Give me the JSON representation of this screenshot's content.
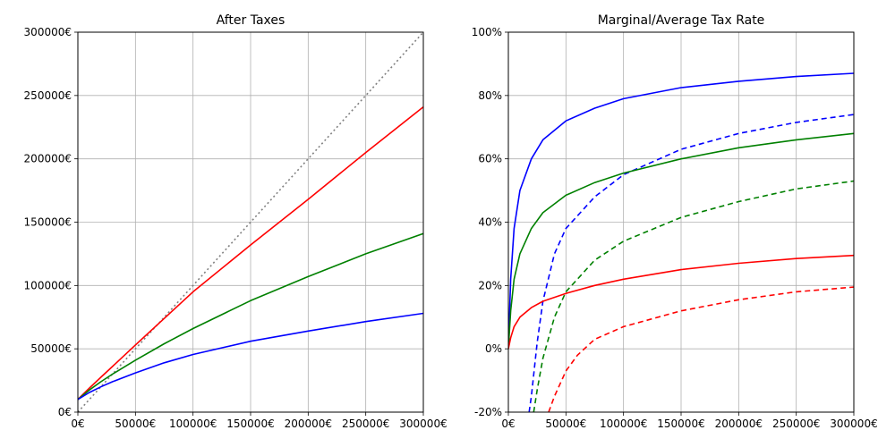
{
  "chart_data": [
    {
      "type": "line",
      "title": "After Taxes",
      "xlabel": "",
      "ylabel": "",
      "xlim": [
        0,
        300000
      ],
      "ylim": [
        0,
        300000
      ],
      "grid": true,
      "legend": "none",
      "xticks": [
        0,
        50000,
        100000,
        150000,
        200000,
        250000,
        300000
      ],
      "yticks": [
        0,
        50000,
        100000,
        150000,
        200000,
        250000,
        300000
      ],
      "xtick_labels": [
        "0€",
        "50000€",
        "100000€",
        "150000€",
        "200000€",
        "250000€",
        "300000€"
      ],
      "ytick_labels": [
        "0€",
        "50000€",
        "100000€",
        "150000€",
        "200000€",
        "250000€",
        "300000€"
      ],
      "x": [
        0,
        10000,
        20000,
        30000,
        50000,
        75000,
        100000,
        150000,
        200000,
        250000,
        300000
      ],
      "series": [
        {
          "color": "#808080",
          "style": "dotted",
          "values": [
            0,
            10000,
            20000,
            30000,
            50000,
            75000,
            100000,
            150000,
            200000,
            250000,
            300000
          ]
        },
        {
          "color": "#ff0000",
          "style": "solid",
          "values": [
            10000,
            19000,
            27500,
            36000,
            53000,
            74000,
            95000,
            132000,
            168000,
            205000,
            241000
          ]
        },
        {
          "color": "#008000",
          "style": "solid",
          "values": [
            10000,
            17500,
            24000,
            30000,
            41000,
            54000,
            66000,
            88000,
            107000,
            125000,
            141000
          ]
        },
        {
          "color": "#0000ff",
          "style": "solid",
          "values": [
            10000,
            15500,
            20000,
            24000,
            31000,
            39000,
            45500,
            56000,
            64000,
            71500,
            78000
          ]
        }
      ]
    },
    {
      "type": "line",
      "title": "Marginal/Average Tax Rate",
      "xlabel": "",
      "ylabel": "",
      "xlim": [
        0,
        300000
      ],
      "ylim": [
        -20,
        100
      ],
      "grid": true,
      "legend": "none",
      "xticks": [
        0,
        50000,
        100000,
        150000,
        200000,
        250000,
        300000
      ],
      "yticks": [
        -20,
        0,
        20,
        40,
        60,
        80,
        100
      ],
      "xtick_labels": [
        "0€",
        "50000€",
        "100000€",
        "150000€",
        "200000€",
        "250000€",
        "300000€"
      ],
      "ytick_labels": [
        "-20%",
        "0%",
        "20%",
        "40%",
        "60%",
        "80%",
        "100%"
      ],
      "series": [
        {
          "color": "#0000ff",
          "style": "solid",
          "x": [
            0,
            2000,
            5000,
            10000,
            20000,
            30000,
            50000,
            75000,
            100000,
            150000,
            200000,
            250000,
            300000
          ],
          "values": [
            0,
            22,
            38,
            50,
            60,
            66,
            72,
            76,
            79,
            82.5,
            84.5,
            86,
            87
          ]
        },
        {
          "color": "#0000ff",
          "style": "dashed",
          "x": [
            18000,
            20000,
            25000,
            30000,
            40000,
            50000,
            75000,
            100000,
            150000,
            200000,
            250000,
            300000
          ],
          "values": [
            -20,
            -15,
            2,
            15,
            30,
            38,
            48,
            55,
            63,
            68,
            71.5,
            74
          ]
        },
        {
          "color": "#008000",
          "style": "solid",
          "x": [
            0,
            2000,
            5000,
            10000,
            20000,
            30000,
            50000,
            75000,
            100000,
            150000,
            200000,
            250000,
            300000
          ],
          "values": [
            0,
            12,
            22,
            30,
            38,
            43,
            48.5,
            52.5,
            55.5,
            60,
            63.5,
            66,
            68
          ]
        },
        {
          "color": "#008000",
          "style": "dashed",
          "x": [
            22000,
            25000,
            30000,
            40000,
            50000,
            75000,
            100000,
            150000,
            200000,
            250000,
            300000
          ],
          "values": [
            -20,
            -13,
            -3,
            10,
            18,
            28,
            34,
            41.5,
            46.5,
            50.5,
            53
          ]
        },
        {
          "color": "#ff0000",
          "style": "solid",
          "x": [
            0,
            2000,
            5000,
            10000,
            20000,
            30000,
            50000,
            75000,
            100000,
            150000,
            200000,
            250000,
            300000
          ],
          "values": [
            0,
            3.5,
            7,
            10,
            13,
            15,
            17.5,
            20,
            22,
            25,
            27,
            28.5,
            29.5
          ]
        },
        {
          "color": "#ff0000",
          "style": "dashed",
          "x": [
            35000,
            40000,
            50000,
            60000,
            75000,
            100000,
            150000,
            200000,
            250000,
            300000
          ],
          "values": [
            -20,
            -15,
            -7,
            -2,
            3,
            7,
            12,
            15.5,
            18,
            19.5
          ]
        }
      ]
    }
  ]
}
